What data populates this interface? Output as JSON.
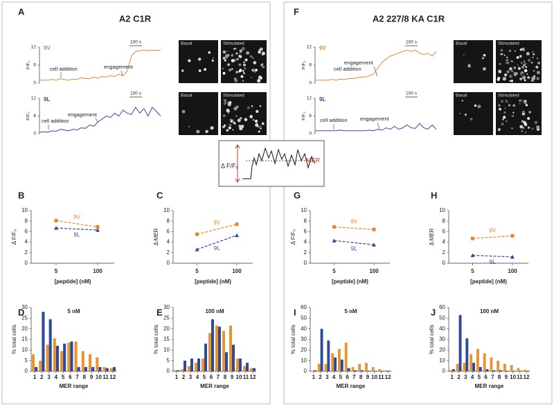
{
  "figure": {
    "letters": [
      "A",
      "F",
      "B",
      "C",
      "G",
      "H",
      "D",
      "E",
      "I",
      "J"
    ],
    "titles": [
      "A2 C1R",
      "A2 227/8 KA C1R"
    ],
    "images": [
      {
        "left": "Basal",
        "right": "Stimulated"
      },
      {
        "left": "Basal",
        "right": "Stimulated"
      },
      {
        "left": "Basal",
        "right": "Stimulated"
      },
      {
        "left": "Basal",
        "right": "Stimulated"
      }
    ]
  },
  "inset": {
    "label_y": "Δ F/F₀",
    "label_mer": "MER"
  },
  "chart_data": [
    {
      "type": "line",
      "x": [
        0,
        1,
        2,
        3,
        4,
        5,
        6,
        7,
        8,
        9,
        10,
        11,
        12,
        13,
        14,
        15,
        16,
        17,
        18,
        19,
        20,
        21,
        22,
        23,
        24,
        25,
        26,
        27,
        28,
        29
      ],
      "xlim": [
        0,
        29
      ],
      "ylim": [
        0,
        12
      ],
      "yticks": [
        0,
        6,
        12
      ],
      "ylabel": "F/F₀",
      "annotations": [
        "cell addition",
        "engagement"
      ],
      "scale_label": "100 s",
      "series": [
        {
          "name": "9V",
          "color": "#e8852f",
          "values": [
            1,
            1,
            1,
            1.2,
            1,
            1.5,
            1.2,
            1,
            1.3,
            1.2,
            1.8,
            1.5,
            1.5,
            2,
            1.6,
            2.2,
            2,
            2.5,
            2.2,
            3,
            2.5,
            4,
            9,
            10.5,
            10.8,
            11,
            10.8,
            11,
            10.9,
            11
          ]
        }
      ]
    },
    {
      "type": "line",
      "x": [
        0,
        1,
        2,
        3,
        4,
        5,
        6,
        7,
        8,
        9,
        10,
        11,
        12,
        13,
        14,
        15,
        16,
        17,
        18,
        19,
        20,
        21,
        22,
        23,
        24,
        25,
        26,
        27,
        28,
        29
      ],
      "xlim": [
        0,
        29
      ],
      "ylim": [
        0,
        12
      ],
      "yticks": [
        0,
        6,
        12
      ],
      "ylabel": "F/F₀",
      "annotations": [
        "cell addition",
        "engagement"
      ],
      "scale_label": "100 s",
      "series": [
        {
          "name": "9L",
          "color": "#2e4a9c",
          "values": [
            0.5,
            0.6,
            0.5,
            1,
            0.8,
            1.5,
            1.2,
            1,
            1.5,
            1.3,
            2,
            1.8,
            3,
            2.5,
            4,
            5,
            6,
            5.5,
            7,
            6,
            8,
            7,
            6.5,
            9,
            7,
            8.5,
            6,
            9,
            7.5,
            6
          ]
        }
      ]
    },
    {
      "type": "line",
      "x": [
        0,
        1,
        2,
        3,
        4,
        5,
        6,
        7,
        8,
        9,
        10,
        11,
        12,
        13,
        14,
        15,
        16,
        17,
        18,
        19,
        20,
        21,
        22,
        23,
        24,
        25,
        26,
        27,
        28,
        29
      ],
      "xlim": [
        0,
        29
      ],
      "ylim": [
        0,
        12
      ],
      "yticks": [
        0,
        6,
        12
      ],
      "ylabel": "F/F₀",
      "annotations": [
        "engagement",
        "cell addition"
      ],
      "scale_label": "100 s",
      "series": [
        {
          "name": "9V",
          "color": "#e8852f",
          "values": [
            1,
            1,
            1,
            1,
            1.2,
            1,
            1.3,
            1.2,
            1.5,
            1.5,
            1.8,
            2,
            2,
            2.5,
            3,
            5,
            7,
            8,
            9,
            9.5,
            10,
            10.5,
            11,
            10.5,
            11,
            10,
            9.5,
            10,
            9,
            10.5
          ]
        }
      ]
    },
    {
      "type": "line",
      "x": [
        0,
        1,
        2,
        3,
        4,
        5,
        6,
        7,
        8,
        9,
        10,
        11,
        12,
        13,
        14,
        15,
        16,
        17,
        18,
        19,
        20,
        21,
        22,
        23,
        24,
        25,
        26,
        27,
        28,
        29
      ],
      "xlim": [
        0,
        29
      ],
      "ylim": [
        0,
        12
      ],
      "yticks": [
        0,
        6,
        12
      ],
      "ylabel": "F/F₀",
      "annotations": [
        "cell addition",
        "engagement"
      ],
      "scale_label": "100 s",
      "series": [
        {
          "name": "9L",
          "color": "#2e4a9c",
          "values": [
            1,
            1,
            1,
            1,
            1,
            1,
            1.2,
            1,
            1,
            1,
            1,
            1,
            1,
            1.2,
            1,
            1.5,
            1.2,
            2,
            1.5,
            2.5,
            1.5,
            2,
            3,
            2,
            1.8,
            3.5,
            2,
            1.5,
            3,
            1.5
          ]
        }
      ]
    },
    {
      "type": "line",
      "categories": [
        "5",
        "100"
      ],
      "ylim": [
        0,
        10
      ],
      "yticks": [
        0,
        2,
        4,
        6,
        8,
        10
      ],
      "xlabel": "[peptide] (nM)",
      "ylabel": "Δ F/F₀",
      "series": [
        {
          "name": "9V",
          "color": "#e8852f",
          "values": [
            8.1,
            6.9
          ]
        },
        {
          "name": "9L",
          "color": "#2e4a9c",
          "values": [
            6.7,
            6.3
          ]
        }
      ]
    },
    {
      "type": "line",
      "categories": [
        "5",
        "100"
      ],
      "ylim": [
        0,
        10
      ],
      "yticks": [
        0,
        2,
        4,
        6,
        8,
        10
      ],
      "xlabel": "[peptide] (nM)",
      "ylabel": "Δ MER",
      "series": [
        {
          "name": "9V",
          "color": "#e8852f",
          "values": [
            5.5,
            7.4
          ]
        },
        {
          "name": "9L",
          "color": "#2e4a9c",
          "values": [
            2.6,
            5.3
          ]
        }
      ]
    },
    {
      "type": "line",
      "categories": [
        "5",
        "100"
      ],
      "ylim": [
        0,
        10
      ],
      "yticks": [
        0,
        2,
        4,
        6,
        8,
        10
      ],
      "xlabel": "[peptide] (nM)",
      "ylabel": "Δ F/F₀",
      "series": [
        {
          "name": "9V",
          "color": "#e8852f",
          "values": [
            6.9,
            6.4
          ]
        },
        {
          "name": "9L",
          "color": "#2e4a9c",
          "values": [
            4.3,
            3.5
          ]
        }
      ]
    },
    {
      "type": "line",
      "categories": [
        "5",
        "100"
      ],
      "ylim": [
        0,
        10
      ],
      "yticks": [
        0,
        2,
        4,
        6,
        8,
        10
      ],
      "xlabel": "[peptide] (nM)",
      "ylabel": "Δ MER",
      "series": [
        {
          "name": "9V",
          "color": "#e8852f",
          "values": [
            4.7,
            5.2
          ]
        },
        {
          "name": "9L",
          "color": "#2e4a9c",
          "values": [
            1.5,
            1.2
          ]
        }
      ]
    },
    {
      "type": "bar",
      "title": "5 nM",
      "categories": [
        "1",
        "2",
        "3",
        "4",
        "5",
        "6",
        "7",
        "8",
        "9",
        "10",
        "11",
        "12"
      ],
      "ylim": [
        0,
        30
      ],
      "yticks": [
        0,
        5,
        10,
        15,
        20,
        25,
        30
      ],
      "xlabel": "MER range",
      "ylabel": "% total cells",
      "series": [
        {
          "color": "#e8952f",
          "values": [
            8,
            5,
            12.5,
            15.5,
            9.5,
            13.5,
            14,
            9.5,
            8,
            6.5,
            2,
            1.5
          ]
        },
        {
          "color": "#2e4a9c",
          "values": [
            2,
            28,
            24.5,
            12,
            13,
            14,
            2,
            2,
            2,
            2,
            1.5,
            2
          ]
        }
      ]
    },
    {
      "type": "bar",
      "title": "100 nM",
      "categories": [
        "1",
        "2",
        "3",
        "4",
        "5",
        "6",
        "7",
        "8",
        "9",
        "10",
        "11",
        "12"
      ],
      "ylim": [
        0,
        30
      ],
      "yticks": [
        0,
        5,
        10,
        15,
        20,
        25,
        30
      ],
      "xlabel": "MER range",
      "ylabel": "% total cells",
      "series": [
        {
          "color": "#e8952f",
          "values": [
            0.5,
            1,
            2.5,
            4,
            6,
            18,
            21.5,
            19,
            21.5,
            6,
            2.5,
            1.5
          ]
        },
        {
          "color": "#2e4a9c",
          "values": [
            0.5,
            5,
            6,
            6,
            13,
            24.5,
            21,
            9,
            12.5,
            6,
            4,
            1.5
          ]
        }
      ]
    },
    {
      "type": "bar",
      "title": "5 nM",
      "categories": [
        "1",
        "2",
        "3",
        "4",
        "5",
        "6",
        "7",
        "8",
        "9",
        "10",
        "11",
        "12"
      ],
      "ylim": [
        0,
        60
      ],
      "yticks": [
        0,
        10,
        20,
        30,
        40,
        50,
        60
      ],
      "xlabel": "MER range",
      "ylabel": "% total cells",
      "series": [
        {
          "color": "#e8952f",
          "values": [
            0.5,
            7,
            7,
            17,
            21,
            27,
            4,
            7,
            8,
            4,
            2,
            1
          ]
        },
        {
          "color": "#2e4a9c",
          "values": [
            1,
            40,
            29,
            13,
            11,
            3,
            1,
            1,
            0.5,
            0.5,
            0.5,
            0.5
          ]
        }
      ]
    },
    {
      "type": "bar",
      "title": "100 nM",
      "categories": [
        "1",
        "2",
        "3",
        "4",
        "5",
        "6",
        "7",
        "8",
        "9",
        "10",
        "11",
        "12"
      ],
      "ylim": [
        0,
        60
      ],
      "yticks": [
        0,
        10,
        20,
        30,
        40,
        50,
        60
      ],
      "xlabel": "MER range",
      "ylabel": "% total cells",
      "series": [
        {
          "color": "#e8952f",
          "values": [
            1,
            7,
            8,
            16,
            21,
            17,
            13,
            10,
            7,
            6,
            3,
            1.5
          ]
        },
        {
          "color": "#2e4a9c",
          "values": [
            2,
            53,
            31,
            8,
            4,
            2,
            1,
            1,
            0.5,
            0.5,
            0.5,
            0.5
          ]
        }
      ]
    }
  ]
}
